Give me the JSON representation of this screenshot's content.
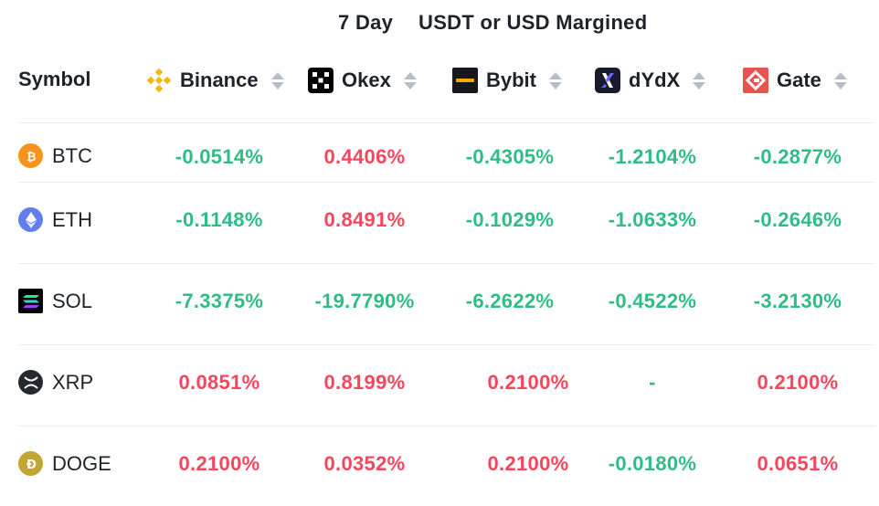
{
  "header": {
    "period": "7 Day",
    "margin_type": "USDT or USD Margined"
  },
  "table": {
    "symbol_header": "Symbol",
    "exchanges": [
      {
        "name": "Binance",
        "icon": "binance-logo-icon"
      },
      {
        "name": "Okex",
        "icon": "okex-logo-icon"
      },
      {
        "name": "Bybit",
        "icon": "bybit-logo-icon"
      },
      {
        "name": "dYdX",
        "icon": "dydx-logo-icon"
      },
      {
        "name": "Gate",
        "icon": "gate-logo-icon"
      }
    ],
    "rows": [
      {
        "symbol": "BTC",
        "icon": "bitcoin-icon",
        "values": [
          "-0.0514%",
          "0.4406%",
          "-0.4305%",
          "-1.2104%",
          "-0.2877%"
        ]
      },
      {
        "symbol": "ETH",
        "icon": "ethereum-icon",
        "values": [
          "-0.1148%",
          "0.8491%",
          "-0.1029%",
          "-1.0633%",
          "-0.2646%"
        ]
      },
      {
        "symbol": "SOL",
        "icon": "solana-icon",
        "values": [
          "-7.3375%",
          "-19.7790%",
          "-6.2622%",
          "-0.4522%",
          "-3.2130%"
        ]
      },
      {
        "symbol": "XRP",
        "icon": "xrp-icon",
        "values": [
          "0.0851%",
          "0.8199%",
          "0.2100%",
          "-",
          "0.2100%"
        ]
      },
      {
        "symbol": "DOGE",
        "icon": "dogecoin-icon",
        "values": [
          "0.2100%",
          "0.0352%",
          "0.2100%",
          "-0.0180%",
          "0.0651%"
        ]
      }
    ]
  },
  "colors": {
    "positive": "#f6465d",
    "negative": "#2ebd85",
    "text": "#1e2329",
    "sort_arrow": "#b7bdc6",
    "divider": "#eaecef"
  }
}
